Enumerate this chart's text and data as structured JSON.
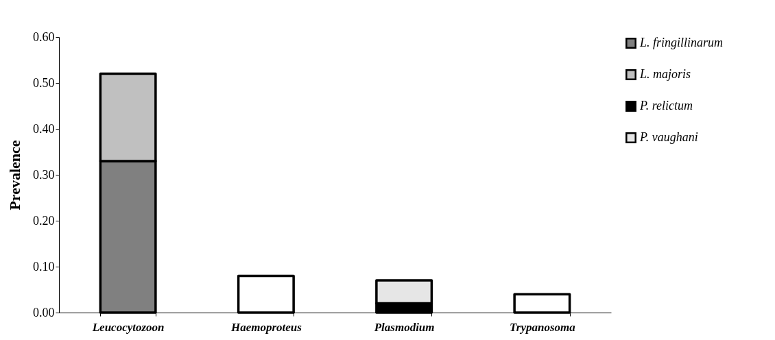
{
  "chart_data": {
    "type": "bar",
    "stacked": true,
    "ylabel": "Prevalence",
    "categories": [
      "Leucocytozoon",
      "Haemoproteus",
      "Plasmodium",
      "Trypanosoma"
    ],
    "series": [
      {
        "name": "L. fringillinarum",
        "color": "#808080",
        "values": [
          0.33,
          null,
          null,
          null
        ]
      },
      {
        "name": "L. majoris",
        "color": "#c0c0c0",
        "values": [
          0.19,
          null,
          null,
          null
        ]
      },
      {
        "name": "P. relictum",
        "color": "#000000",
        "values": [
          null,
          null,
          0.02,
          null
        ]
      },
      {
        "name": "P. vaughani",
        "color": "#e6e6e6",
        "values": [
          null,
          null,
          0.05,
          null
        ]
      },
      {
        "color": "#ffffff",
        "values": [
          null,
          0.08,
          null,
          0.04
        ]
      }
    ],
    "ylim": [
      0,
      0.6
    ],
    "yticks": [
      {
        "value": 0,
        "label": "0.00"
      },
      {
        "value": 0.1,
        "label": "0.10"
      },
      {
        "value": 0.2,
        "label": "0.20"
      },
      {
        "value": 0.3,
        "label": "0.30"
      },
      {
        "value": 0.4,
        "label": "0.40"
      },
      {
        "value": 0.5,
        "label": "0.50"
      },
      {
        "value": 0.6,
        "label": "0.60"
      }
    ],
    "grid": false,
    "legend": "top right"
  }
}
